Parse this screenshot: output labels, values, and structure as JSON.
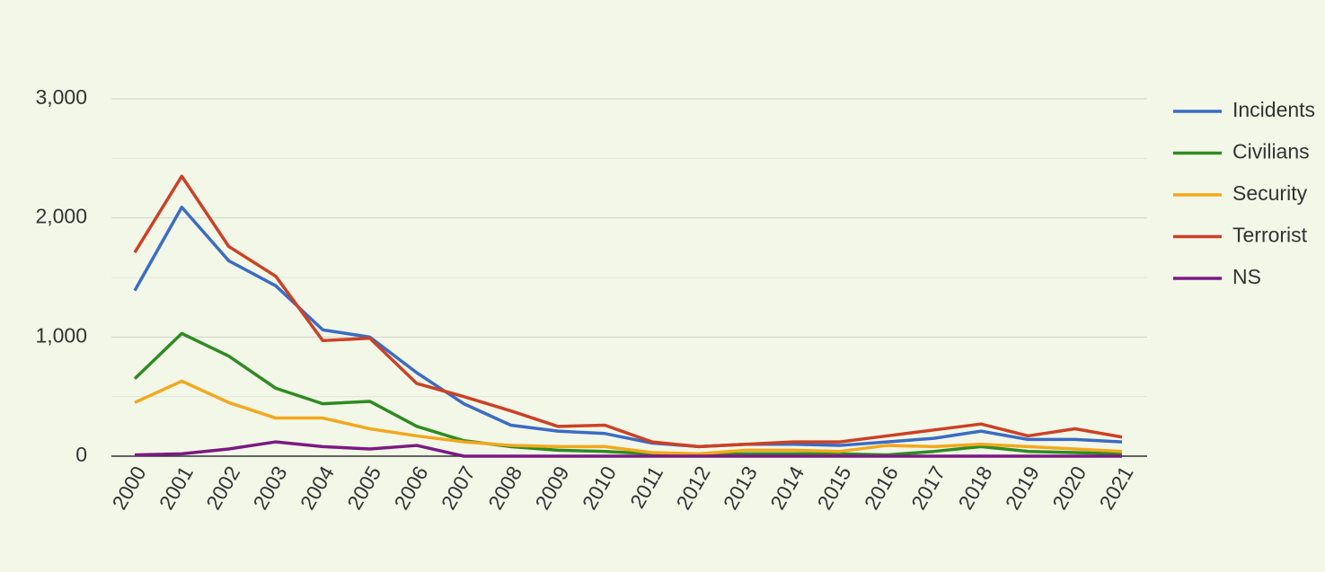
{
  "chart_data": {
    "type": "line",
    "categories": [
      "2000",
      "2001",
      "2002",
      "2003",
      "2004",
      "2005",
      "2006",
      "2007",
      "2008",
      "2009",
      "2010",
      "2011",
      "2012",
      "2013",
      "2014",
      "2015",
      "2016",
      "2017",
      "2018",
      "2019",
      "2020",
      "2021"
    ],
    "series": [
      {
        "name": "Incidents",
        "color": "#3b6cc4",
        "values": [
          1390,
          2090,
          1640,
          1430,
          1060,
          1000,
          700,
          440,
          260,
          210,
          190,
          110,
          80,
          100,
          100,
          90,
          120,
          150,
          210,
          140,
          140,
          120
        ]
      },
      {
        "name": "Civilians",
        "color": "#2e8b22",
        "values": [
          650,
          1030,
          840,
          570,
          440,
          460,
          250,
          130,
          80,
          50,
          40,
          20,
          10,
          20,
          20,
          20,
          10,
          40,
          80,
          40,
          30,
          20
        ]
      },
      {
        "name": "Security",
        "color": "#f2a81d",
        "values": [
          450,
          630,
          450,
          320,
          320,
          230,
          170,
          120,
          90,
          80,
          80,
          30,
          20,
          50,
          50,
          40,
          90,
          80,
          100,
          80,
          60,
          40
        ]
      },
      {
        "name": "Terrorist",
        "color": "#cc4125",
        "values": [
          1710,
          2350,
          1760,
          1510,
          970,
          990,
          610,
          500,
          380,
          250,
          260,
          120,
          80,
          100,
          120,
          120,
          170,
          220,
          270,
          170,
          230,
          160
        ]
      },
      {
        "name": "NS",
        "color": "#7b1a82",
        "values": [
          10,
          20,
          60,
          120,
          80,
          60,
          90,
          0,
          0,
          0,
          0,
          0,
          0,
          0,
          0,
          0,
          0,
          0,
          0,
          0,
          0,
          0
        ]
      }
    ],
    "ylim": [
      0,
      3000
    ],
    "yticks": [
      0,
      {
        "value": 1000,
        "label": "1,000"
      },
      {
        "value": 2000,
        "label": "2,000"
      },
      {
        "value": 3000,
        "label": "3,000"
      }
    ],
    "grid": true,
    "legend": "right"
  }
}
